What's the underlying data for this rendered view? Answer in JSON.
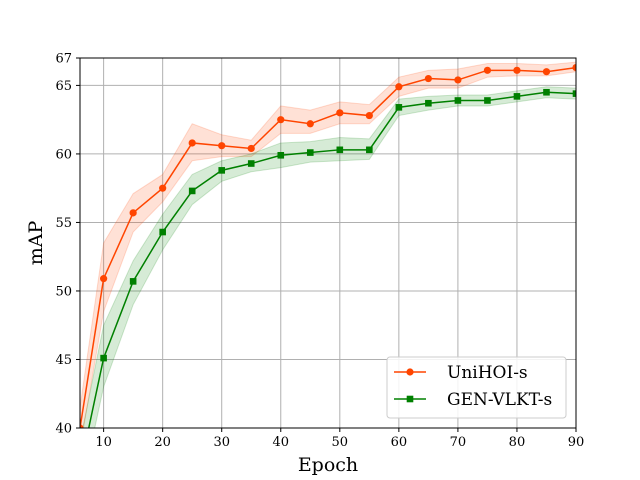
{
  "chart_data": {
    "type": "line",
    "xlabel": "Epoch",
    "ylabel": "mAP",
    "xlim": [
      6,
      90
    ],
    "ylim": [
      40,
      67
    ],
    "xticks": [
      10,
      20,
      30,
      40,
      50,
      60,
      70,
      80,
      90
    ],
    "yticks": [
      40,
      45,
      50,
      55,
      60,
      65,
      67
    ],
    "grid": true,
    "legend_position": "bottom-right",
    "series": [
      {
        "name": "UniHOI-s",
        "color": "#ff4500",
        "marker": "circle",
        "x": [
          6,
          10,
          15,
          20,
          25,
          30,
          35,
          40,
          45,
          50,
          55,
          60,
          65,
          70,
          75,
          80,
          85,
          90
        ],
        "y": [
          40.0,
          50.9,
          55.7,
          57.5,
          60.8,
          60.6,
          60.4,
          62.5,
          62.2,
          63.0,
          62.8,
          64.9,
          65.5,
          65.4,
          66.1,
          66.1,
          66.0,
          66.3
        ],
        "band_lower": [
          38.5,
          48.5,
          54.3,
          56.5,
          59.5,
          59.8,
          59.8,
          61.5,
          61.5,
          62.2,
          62.2,
          64.2,
          64.8,
          64.8,
          65.6,
          65.7,
          65.7,
          66.0
        ],
        "band_upper": [
          41.5,
          53.5,
          57.1,
          58.5,
          62.2,
          61.4,
          61.0,
          63.5,
          63.2,
          63.8,
          63.6,
          65.6,
          66.1,
          66.2,
          66.6,
          66.6,
          66.5,
          66.7
        ]
      },
      {
        "name": "GEN-VLKT-s",
        "color": "#008000",
        "marker": "square",
        "x": [
          6,
          10,
          15,
          20,
          25,
          30,
          35,
          40,
          45,
          50,
          55,
          60,
          65,
          70,
          75,
          80,
          85,
          90
        ],
        "y": [
          37.0,
          45.1,
          50.7,
          54.3,
          57.3,
          58.8,
          59.3,
          59.9,
          60.1,
          60.3,
          60.3,
          63.4,
          63.7,
          63.9,
          63.9,
          64.2,
          64.5,
          64.4
        ],
        "band_lower": [
          35.0,
          43.0,
          49.0,
          53.0,
          56.3,
          58.0,
          58.7,
          59.0,
          59.4,
          59.5,
          59.6,
          62.8,
          63.2,
          63.5,
          63.5,
          63.8,
          64.1,
          64.0
        ],
        "band_upper": [
          39.0,
          47.5,
          52.2,
          55.6,
          58.5,
          59.5,
          60.0,
          60.8,
          60.9,
          61.2,
          61.1,
          64.0,
          64.2,
          64.3,
          64.3,
          64.6,
          64.9,
          64.8
        ]
      }
    ]
  }
}
